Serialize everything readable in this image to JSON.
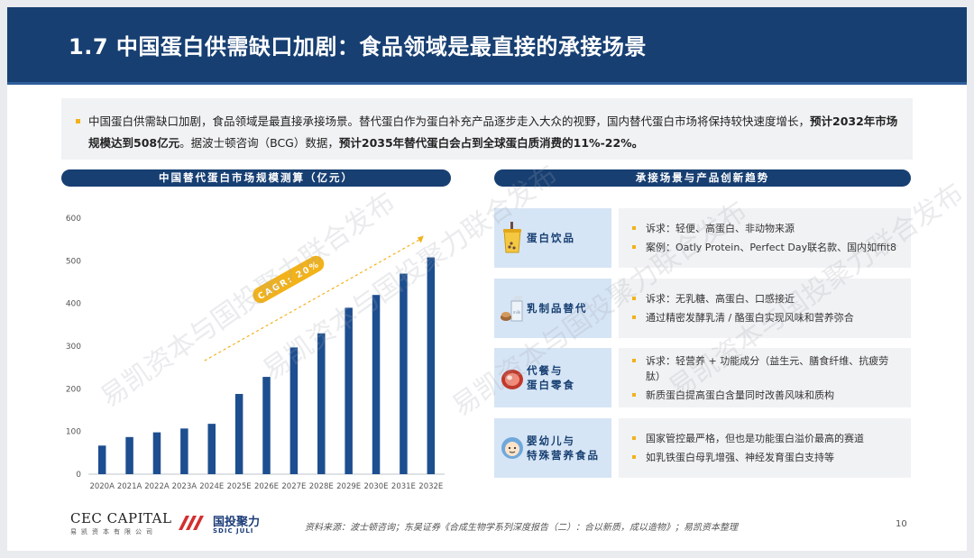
{
  "header": {
    "title": "1.7 中国蛋白供需缺口加剧：食品领域是最直接的承接场景"
  },
  "summary": {
    "part1": "中国蛋白供需缺口加剧，食品领域是最直接承接场景。替代蛋白作为蛋白补充产品逐步走入大众的视野，国内替代蛋白市场将保持较快速度增长，",
    "bold1": "预计2032年市场规模达到508亿元",
    "part2": "。据波士顿咨询（BCG）数据，",
    "bold2": "预计2035年替代蛋白会占到全球蛋白质消费的11%-22%。"
  },
  "left_panel": {
    "title": "中国替代蛋白市场规模测算（亿元）"
  },
  "right_panel": {
    "title": "承接场景与产品创新趋势"
  },
  "chart_data": {
    "type": "bar",
    "title": "中国替代蛋白市场规模测算（亿元）",
    "categories": [
      "2020A",
      "2021A",
      "2022A",
      "2023A",
      "2024E",
      "2025E",
      "2026E",
      "2027E",
      "2028E",
      "2029E",
      "2030E",
      "2031E",
      "2032E"
    ],
    "values": [
      67,
      87,
      98,
      107,
      118,
      188,
      228,
      297,
      330,
      390,
      420,
      470,
      508
    ],
    "yticks": [
      0,
      100,
      200,
      300,
      400,
      500,
      600
    ],
    "ylim": [
      0,
      600
    ],
    "annotation": "CAGR: 20%",
    "grid": false,
    "bar_color": "#1d4e8f",
    "trend_color": "#f2b21a"
  },
  "scenes": [
    {
      "icon": "bubble-tea-icon",
      "label": "蛋白饮品",
      "items": [
        "诉求：轻便、高蛋白、非动物来源",
        "案例：Oatly Protein、Perfect Day联名款、国内如ffit8"
      ]
    },
    {
      "icon": "milk-carton-icon",
      "label": "乳制品替代",
      "items": [
        "诉求：无乳糖、高蛋白、口感接近",
        "通过精密发酵乳清 / 酪蛋白实现风味和营养弥合"
      ]
    },
    {
      "icon": "meat-snack-icon",
      "label": "代餐与\n蛋白零食",
      "items": [
        "诉求：轻营养 + 功能成分（益生元、膳食纤维、抗疲劳肽）",
        "新质蛋白提高蛋白含量同时改善风味和质构"
      ]
    },
    {
      "icon": "baby-icon",
      "label": "婴幼儿与\n特殊营养食品",
      "items": [
        "国家管控最严格，但也是功能蛋白溢价最高的赛道",
        "如乳铁蛋白母乳增强、神经发育蛋白支持等"
      ]
    }
  ],
  "watermark": "易凯资本与国投聚力联合发布",
  "footer": {
    "cec_logo": "CEC CAPITAL",
    "cec_sub": "易凯资本有限公司",
    "sdic_logo": "国投聚力",
    "sdic_en": "SDIC JULI",
    "source": "资料来源：波士顿咨询；东吴证券《合成生物学系列深度报告（二）：合以新质，成以造物》；易凯资本整理",
    "page": "10"
  },
  "colors": {
    "navy": "#173f72",
    "accent": "#f2b21a",
    "light_blue": "#d6e5f5",
    "panel_gray": "#f1f2f4"
  }
}
